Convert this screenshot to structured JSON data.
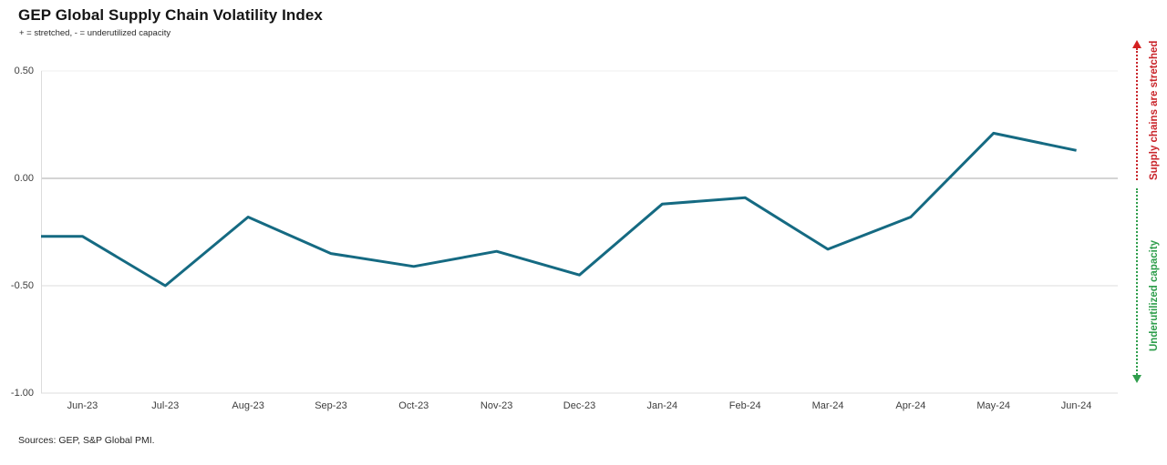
{
  "title": "GEP Global Supply Chain Volatility Index",
  "subtitle": "+ = stretched, - = underutilized capacity",
  "footer": {
    "source_note": "Sources: GEP, S&P Global PMI."
  },
  "annotations": {
    "stretched": {
      "label": "Supply chains are stretched",
      "color": "#c9252b",
      "arrow_color": "#d42020",
      "direction": "up"
    },
    "underutilized": {
      "label": "Underutilized capacity",
      "color": "#2f9e4c",
      "arrow_color": "#2f9e4c",
      "direction": "down"
    }
  },
  "chart_data": {
    "type": "line",
    "title": "GEP Global Supply Chain Volatility Index",
    "categories": [
      "Jun-23",
      "Jul-23",
      "Aug-23",
      "Sep-23",
      "Oct-23",
      "Nov-23",
      "Dec-23",
      "Jan-24",
      "Feb-24",
      "Mar-24",
      "Apr-24",
      "May-24",
      "Jun-24"
    ],
    "values": [
      -0.27,
      -0.5,
      -0.18,
      -0.35,
      -0.41,
      -0.34,
      -0.45,
      -0.12,
      -0.09,
      -0.33,
      -0.18,
      0.21,
      0.13
    ],
    "series_name": "GEP Global Supply Chain Volatility Index",
    "line_color": "#156a82",
    "line_width": 3,
    "xlabel": "",
    "ylabel": "",
    "ylim": [
      -1.0,
      0.5
    ],
    "yticks": [
      {
        "label": "0.50",
        "value": 0.5,
        "grid_color": "#efefef"
      },
      {
        "label": "0.00",
        "value": 0.0,
        "grid_color": "#a8a8a8"
      },
      {
        "label": "-0.50",
        "value": -0.5,
        "grid_color": "#dcdcdc"
      },
      {
        "label": "-1.00",
        "value": -1.0,
        "grid_color": "#dcdcdc"
      }
    ],
    "axis_line_color": "#dcdcdc",
    "grid": "horizontal-only",
    "legend_position": "none"
  }
}
